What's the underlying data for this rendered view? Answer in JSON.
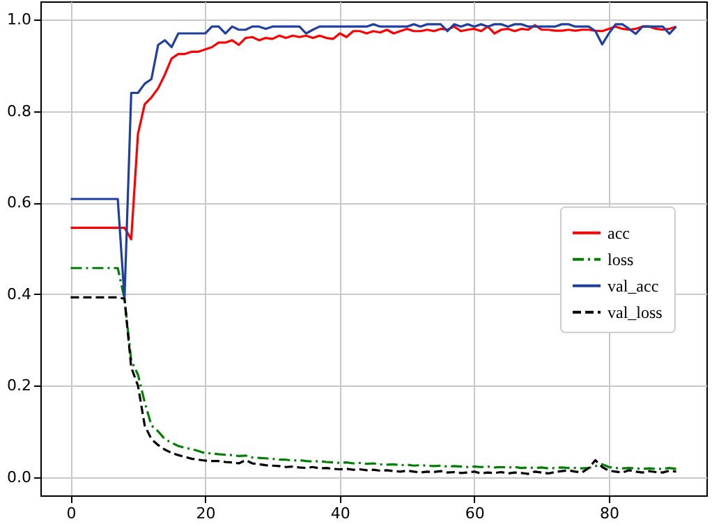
{
  "chart_data": {
    "type": "line",
    "x": [
      0,
      1,
      2,
      3,
      4,
      5,
      6,
      7,
      8,
      9,
      10,
      11,
      12,
      13,
      14,
      15,
      16,
      17,
      18,
      19,
      20,
      21,
      22,
      23,
      24,
      25,
      26,
      27,
      28,
      29,
      30,
      31,
      32,
      33,
      34,
      35,
      36,
      37,
      38,
      39,
      40,
      41,
      42,
      43,
      44,
      45,
      46,
      47,
      48,
      49,
      50,
      51,
      52,
      53,
      54,
      55,
      56,
      57,
      58,
      59,
      60,
      61,
      62,
      63,
      64,
      65,
      66,
      67,
      68,
      69,
      70,
      71,
      72,
      73,
      74,
      75,
      76,
      77,
      78,
      79,
      80,
      81,
      82,
      83,
      84,
      85,
      86,
      87,
      88,
      89,
      90
    ],
    "series": [
      {
        "name": "acc",
        "color": "#ff0000",
        "line_style": "solid",
        "values": [
          0.545,
          0.545,
          0.545,
          0.545,
          0.545,
          0.545,
          0.545,
          0.545,
          0.545,
          0.52,
          0.75,
          0.815,
          0.83,
          0.85,
          0.88,
          0.915,
          0.925,
          0.925,
          0.93,
          0.93,
          0.935,
          0.94,
          0.95,
          0.95,
          0.955,
          0.945,
          0.96,
          0.962,
          0.955,
          0.96,
          0.958,
          0.965,
          0.96,
          0.965,
          0.962,
          0.965,
          0.96,
          0.965,
          0.96,
          0.958,
          0.97,
          0.962,
          0.975,
          0.975,
          0.97,
          0.975,
          0.972,
          0.978,
          0.97,
          0.975,
          0.98,
          0.975,
          0.975,
          0.978,
          0.975,
          0.98,
          0.978,
          0.985,
          0.975,
          0.978,
          0.98,
          0.975,
          0.985,
          0.97,
          0.978,
          0.98,
          0.975,
          0.98,
          0.978,
          0.988,
          0.978,
          0.978,
          0.976,
          0.976,
          0.978,
          0.976,
          0.978,
          0.978,
          0.976,
          0.975,
          0.98,
          0.985,
          0.98,
          0.978,
          0.98,
          0.985,
          0.985,
          0.98,
          0.978,
          0.98,
          0.985
        ]
      },
      {
        "name": "loss",
        "color": "#007f00",
        "line_style": "dashdot",
        "values": [
          0.457,
          0.457,
          0.457,
          0.457,
          0.457,
          0.457,
          0.457,
          0.457,
          0.39,
          0.255,
          0.224,
          0.164,
          0.113,
          0.1,
          0.083,
          0.075,
          0.068,
          0.064,
          0.061,
          0.057,
          0.052,
          0.052,
          0.05,
          0.049,
          0.048,
          0.046,
          0.047,
          0.043,
          0.042,
          0.041,
          0.04,
          0.038,
          0.038,
          0.036,
          0.037,
          0.035,
          0.034,
          0.035,
          0.033,
          0.032,
          0.031,
          0.032,
          0.03,
          0.031,
          0.029,
          0.03,
          0.028,
          0.027,
          0.028,
          0.026,
          0.027,
          0.025,
          0.026,
          0.025,
          0.024,
          0.025,
          0.023,
          0.024,
          0.023,
          0.022,
          0.023,
          0.022,
          0.023,
          0.021,
          0.022,
          0.021,
          0.022,
          0.02,
          0.021,
          0.02,
          0.021,
          0.019,
          0.02,
          0.021,
          0.02,
          0.02,
          0.019,
          0.02,
          0.024,
          0.028,
          0.022,
          0.02,
          0.019,
          0.02,
          0.019,
          0.018,
          0.019,
          0.018,
          0.018,
          0.02,
          0.018
        ]
      },
      {
        "name": "val_acc",
        "color": "#1f3fa0",
        "line_style": "solid",
        "values": [
          0.608,
          0.608,
          0.608,
          0.608,
          0.608,
          0.608,
          0.608,
          0.608,
          0.39,
          0.84,
          0.84,
          0.86,
          0.87,
          0.945,
          0.955,
          0.94,
          0.97,
          0.97,
          0.97,
          0.97,
          0.97,
          0.985,
          0.985,
          0.97,
          0.985,
          0.978,
          0.978,
          0.985,
          0.985,
          0.98,
          0.985,
          0.985,
          0.985,
          0.985,
          0.985,
          0.97,
          0.978,
          0.985,
          0.985,
          0.985,
          0.985,
          0.985,
          0.985,
          0.985,
          0.985,
          0.99,
          0.985,
          0.985,
          0.985,
          0.985,
          0.985,
          0.99,
          0.985,
          0.99,
          0.99,
          0.99,
          0.975,
          0.99,
          0.985,
          0.99,
          0.985,
          0.99,
          0.985,
          0.99,
          0.99,
          0.985,
          0.99,
          0.99,
          0.985,
          0.985,
          0.985,
          0.985,
          0.985,
          0.99,
          0.99,
          0.985,
          0.985,
          0.985,
          0.975,
          0.946,
          0.97,
          0.99,
          0.99,
          0.98,
          0.969,
          0.985,
          0.985,
          0.985,
          0.985,
          0.969,
          0.985
        ]
      },
      {
        "name": "val_loss",
        "color": "#000000",
        "line_style": "dashed",
        "values": [
          0.393,
          0.393,
          0.393,
          0.393,
          0.393,
          0.393,
          0.393,
          0.393,
          0.39,
          0.24,
          0.2,
          0.113,
          0.083,
          0.07,
          0.06,
          0.053,
          0.048,
          0.044,
          0.04,
          0.038,
          0.036,
          0.035,
          0.035,
          0.033,
          0.032,
          0.03,
          0.037,
          0.03,
          0.028,
          0.026,
          0.025,
          0.024,
          0.022,
          0.023,
          0.021,
          0.02,
          0.022,
          0.019,
          0.02,
          0.018,
          0.017,
          0.018,
          0.016,
          0.017,
          0.015,
          0.016,
          0.014,
          0.015,
          0.013,
          0.012,
          0.014,
          0.012,
          0.01,
          0.012,
          0.011,
          0.013,
          0.01,
          0.011,
          0.009,
          0.01,
          0.012,
          0.008,
          0.01,
          0.009,
          0.011,
          0.008,
          0.01,
          0.009,
          0.007,
          0.012,
          0.01,
          0.008,
          0.011,
          0.013,
          0.015,
          0.012,
          0.01,
          0.02,
          0.037,
          0.022,
          0.014,
          0.012,
          0.01,
          0.015,
          0.012,
          0.01,
          0.013,
          0.011,
          0.01,
          0.014,
          0.012
        ]
      }
    ],
    "xlim": [
      -4.5,
      94.5
    ],
    "xticks": [
      0,
      20,
      40,
      60,
      80
    ],
    "ylim": [
      -0.04,
      1.04
    ],
    "yticks": [
      {
        "value": 0,
        "label": "0.0"
      },
      {
        "value": 0.2,
        "label": "0.2"
      },
      {
        "value": 0.4,
        "label": "0.4"
      },
      {
        "value": 0.6,
        "label": "0.6"
      },
      {
        "value": 0.8,
        "label": "0.8"
      },
      {
        "value": 1,
        "label": "1.0"
      }
    ],
    "grid": true,
    "legend": "right"
  }
}
